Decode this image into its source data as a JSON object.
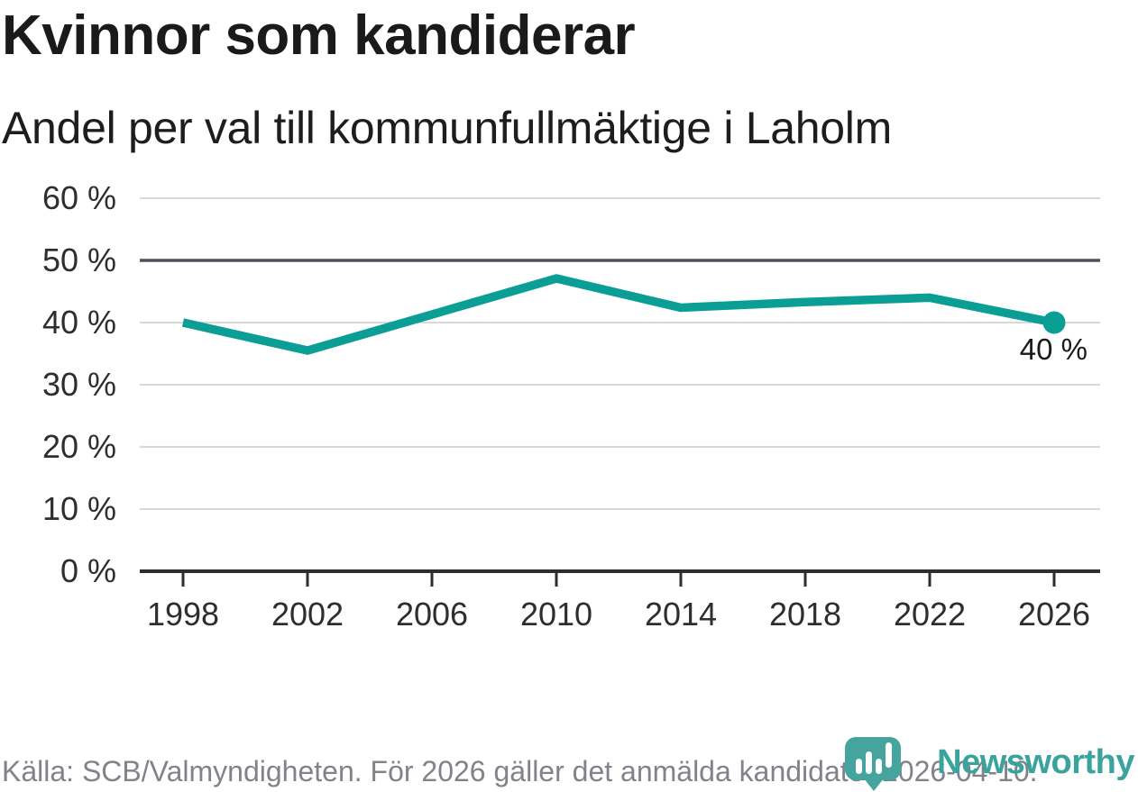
{
  "chart_data": {
    "type": "line",
    "title": "Kvinnor som kandiderar",
    "subtitle": "Andel per val till kommunfullmäktige i Laholm",
    "x": [
      1998,
      2002,
      2006,
      2010,
      2014,
      2018,
      2022,
      2026
    ],
    "x_tick_labels": [
      "1998",
      "2002",
      "2006",
      "2010",
      "2014",
      "2018",
      "2022",
      "2026"
    ],
    "values": [
      40,
      35.5,
      41.3,
      47.1,
      42.4,
      43.3,
      44,
      40
    ],
    "ylim": [
      0,
      60
    ],
    "y_ticks": [
      0,
      10,
      20,
      30,
      40,
      50,
      60
    ],
    "y_tick_labels": [
      "0 %",
      "10 %",
      "20 %",
      "30 %",
      "40 %",
      "50 %",
      "60 %"
    ],
    "reference_line": 50,
    "end_label": "40 %",
    "grid": "horizontal",
    "legend": "none",
    "line_color": "#0a9e95"
  },
  "footer": {
    "source": "Källa: SCB/Valmyndigheten. För 2026 gäller det anmälda kandidater 2026-04-10.",
    "brand": "Newsworthy"
  },
  "colors": {
    "accent": "#0a9e95",
    "logo_teal": "#45a59e",
    "brand_text": "#3aa39c",
    "grid_light": "#d8d8d8",
    "grid_dark": "#50505a",
    "axis": "#2e2e2e",
    "text_dark": "#1a1a1a",
    "text_gray": "#82828a"
  }
}
